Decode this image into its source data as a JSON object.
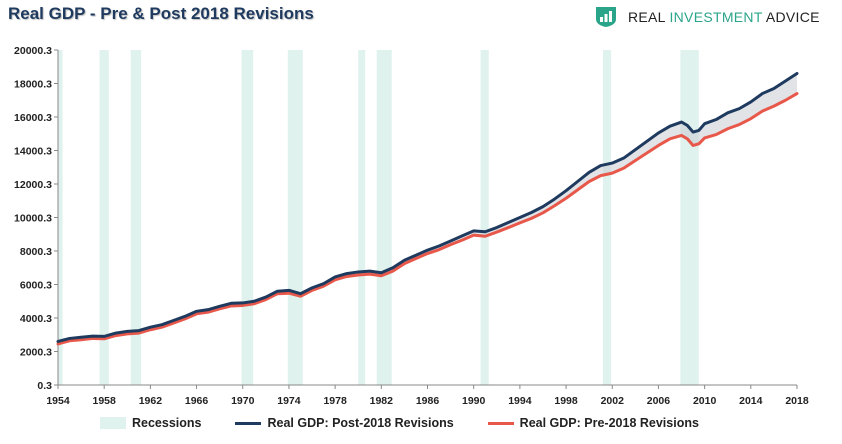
{
  "header": {
    "title": "Real GDP - Pre & Post 2018 Revisions",
    "brand_part1": "REAL ",
    "brand_part2": "INVESTMENT",
    "brand_part3": " ADVICE",
    "brand_icon": "rising-bars-shield-icon"
  },
  "colors": {
    "post": "#1f3a5f",
    "pre": "#e8584a",
    "recession": "#dff2ee",
    "spread": "#c9ccd4",
    "brand": "#2aa58a"
  },
  "chart_data": {
    "type": "line",
    "title": "Real GDP - Pre & Post 2018 Revisions",
    "xlabel": "",
    "ylabel": "",
    "xlim": [
      1954,
      2018
    ],
    "ylim": [
      0.3,
      20000.3
    ],
    "x_ticks": [
      1954,
      1958,
      1962,
      1966,
      1970,
      1974,
      1978,
      1982,
      1986,
      1990,
      1994,
      1998,
      2002,
      2006,
      2010,
      2014,
      2018
    ],
    "x_tick_labels": [
      "1954",
      "1958",
      "1962",
      "1966",
      "1970",
      "1974",
      "1978",
      "1982",
      "1986",
      "1990",
      "1994",
      "1998",
      "2002",
      "2006",
      "2010",
      "2014",
      "2018"
    ],
    "y_ticks": [
      0.3,
      2000.3,
      4000.3,
      6000.3,
      8000.3,
      10000.3,
      12000.3,
      14000.3,
      16000.3,
      18000.3,
      20000.3
    ],
    "y_tick_labels": [
      "0.3",
      "2000.3",
      "4000.3",
      "6000.3",
      "8000.3",
      "10000.3",
      "12000.3",
      "14000.3",
      "16000.3",
      "18000.3",
      "20000.3"
    ],
    "grid": false,
    "legend_position": "bottom",
    "recessions": [
      [
        1953.6,
        1954.4
      ],
      [
        1957.6,
        1958.4
      ],
      [
        1960.3,
        1961.2
      ],
      [
        1969.9,
        1970.9
      ],
      [
        1973.9,
        1975.2
      ],
      [
        1980.0,
        1980.6
      ],
      [
        1981.6,
        1982.9
      ],
      [
        1990.6,
        1991.3
      ],
      [
        2001.2,
        2001.9
      ],
      [
        2007.9,
        2009.5
      ]
    ],
    "legend": [
      "Recessions",
      "Real GDP: Post-2018 Revisions",
      "Real GDP: Pre-2018 Revisions"
    ],
    "series": [
      {
        "name": "Real GDP: Post-2018 Revisions",
        "color": "#1f3a5f",
        "x": [
          1954,
          1955,
          1956,
          1957,
          1958,
          1959,
          1960,
          1961,
          1962,
          1963,
          1964,
          1965,
          1966,
          1967,
          1968,
          1969,
          1970,
          1971,
          1972,
          1973,
          1974,
          1975,
          1976,
          1977,
          1978,
          1979,
          1980,
          1981,
          1982,
          1983,
          1984,
          1985,
          1986,
          1987,
          1988,
          1989,
          1990,
          1991,
          1992,
          1993,
          1994,
          1995,
          1996,
          1997,
          1998,
          1999,
          2000,
          2001,
          2002,
          2003,
          2004,
          2005,
          2006,
          2007,
          2008,
          2008.5,
          2009,
          2009.5,
          2010,
          2011,
          2012,
          2013,
          2014,
          2015,
          2016,
          2017,
          2018
        ],
        "y": [
          2600,
          2780,
          2850,
          2920,
          2900,
          3100,
          3200,
          3250,
          3450,
          3600,
          3850,
          4100,
          4400,
          4500,
          4700,
          4880,
          4900,
          5000,
          5250,
          5600,
          5650,
          5450,
          5800,
          6050,
          6450,
          6650,
          6750,
          6800,
          6700,
          7000,
          7450,
          7750,
          8050,
          8300,
          8600,
          8900,
          9200,
          9150,
          9400,
          9700,
          10000,
          10300,
          10650,
          11100,
          11600,
          12150,
          12700,
          13100,
          13250,
          13550,
          14050,
          14550,
          15050,
          15450,
          15700,
          15500,
          15100,
          15200,
          15600,
          15850,
          16250,
          16500,
          16900,
          17400,
          17700,
          18150,
          18600
        ]
      },
      {
        "name": "Real GDP: Pre-2018 Revisions",
        "color": "#e8584a",
        "x": [
          1954,
          1955,
          1956,
          1957,
          1958,
          1959,
          1960,
          1961,
          1962,
          1963,
          1964,
          1965,
          1966,
          1967,
          1968,
          1969,
          1970,
          1971,
          1972,
          1973,
          1974,
          1975,
          1976,
          1977,
          1978,
          1979,
          1980,
          1981,
          1982,
          1983,
          1984,
          1985,
          1986,
          1987,
          1988,
          1989,
          1990,
          1991,
          1992,
          1993,
          1994,
          1995,
          1996,
          1997,
          1998,
          1999,
          2000,
          2001,
          2002,
          2003,
          2004,
          2005,
          2006,
          2007,
          2008,
          2008.5,
          2009,
          2009.5,
          2010,
          2011,
          2012,
          2013,
          2014,
          2015,
          2016,
          2017,
          2018
        ],
        "y": [
          2450,
          2640,
          2700,
          2780,
          2760,
          2950,
          3050,
          3100,
          3300,
          3450,
          3700,
          3950,
          4250,
          4350,
          4550,
          4720,
          4750,
          4850,
          5100,
          5450,
          5480,
          5300,
          5650,
          5900,
          6280,
          6480,
          6570,
          6620,
          6520,
          6800,
          7250,
          7550,
          7850,
          8080,
          8380,
          8650,
          8950,
          8880,
          9130,
          9400,
          9680,
          9950,
          10280,
          10700,
          11150,
          11650,
          12150,
          12500,
          12650,
          12950,
          13400,
          13850,
          14300,
          14700,
          14900,
          14700,
          14300,
          14400,
          14750,
          14950,
          15300,
          15550,
          15900,
          16350,
          16650,
          17000,
          17400
        ]
      }
    ]
  }
}
